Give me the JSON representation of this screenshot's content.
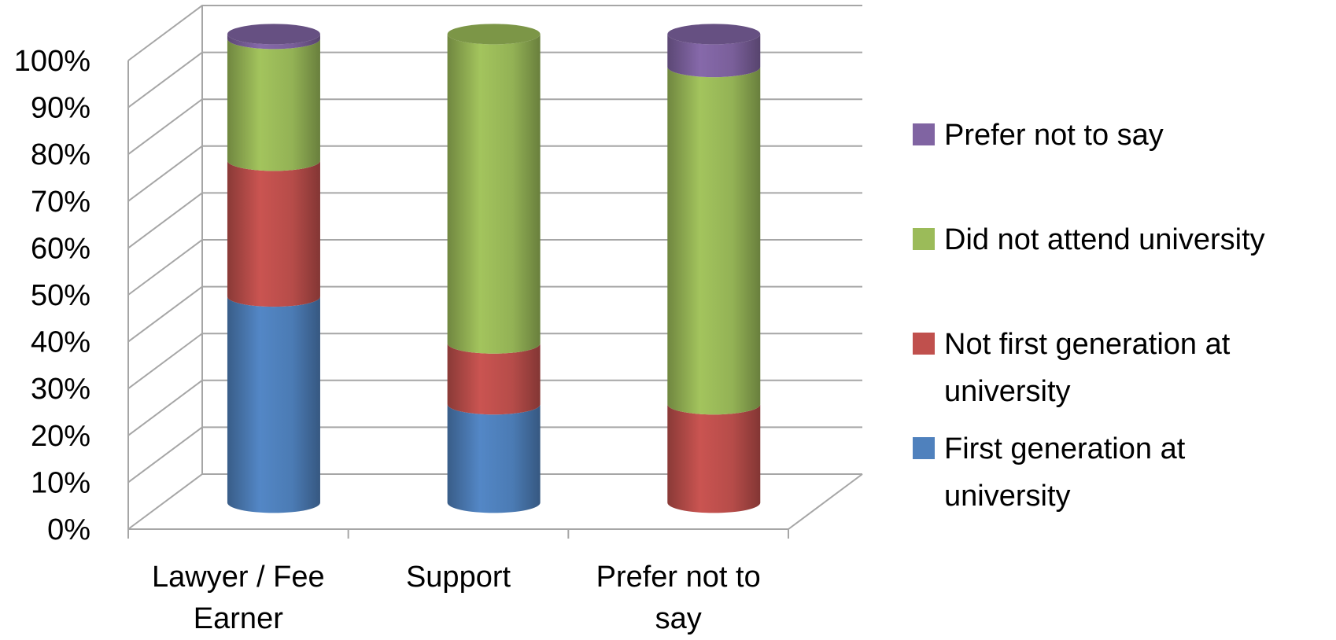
{
  "chart_data": {
    "type": "bar",
    "stacked": true,
    "three_d": true,
    "categories": [
      "Lawyer / Fee Earner",
      "Support",
      "Prefer not to say"
    ],
    "category_lines": [
      [
        "Lawyer / Fee",
        "Earner"
      ],
      [
        "Support"
      ],
      [
        "Prefer not to",
        "say"
      ]
    ],
    "series": [
      {
        "name": "First generation at university",
        "legend_lines": [
          "First generation at",
          "university"
        ],
        "color": "#4f81bd",
        "values": [
          44,
          21,
          0
        ]
      },
      {
        "name": "Not first generation at university",
        "legend_lines": [
          "Not first generation at",
          "university"
        ],
        "color": "#c0504d",
        "values": [
          29,
          13,
          21
        ]
      },
      {
        "name": "Did not attend university",
        "legend_lines": [
          "Did not attend university"
        ],
        "color": "#9bbb59",
        "values": [
          26,
          66,
          72
        ]
      },
      {
        "name": "Prefer not to say",
        "legend_lines": [
          "Prefer not to say"
        ],
        "color": "#8064a2",
        "values": [
          1,
          0,
          7
        ]
      }
    ],
    "ylim": [
      0,
      100
    ],
    "yticks": [
      0,
      10,
      20,
      30,
      40,
      50,
      60,
      70,
      80,
      90,
      100
    ],
    "ytick_labels": [
      "0%",
      "10%",
      "20%",
      "30%",
      "40%",
      "50%",
      "60%",
      "70%",
      "80%",
      "90%",
      "100%"
    ],
    "title": "",
    "xlabel": "",
    "ylabel": "",
    "grid": true,
    "legend_position": "right"
  }
}
